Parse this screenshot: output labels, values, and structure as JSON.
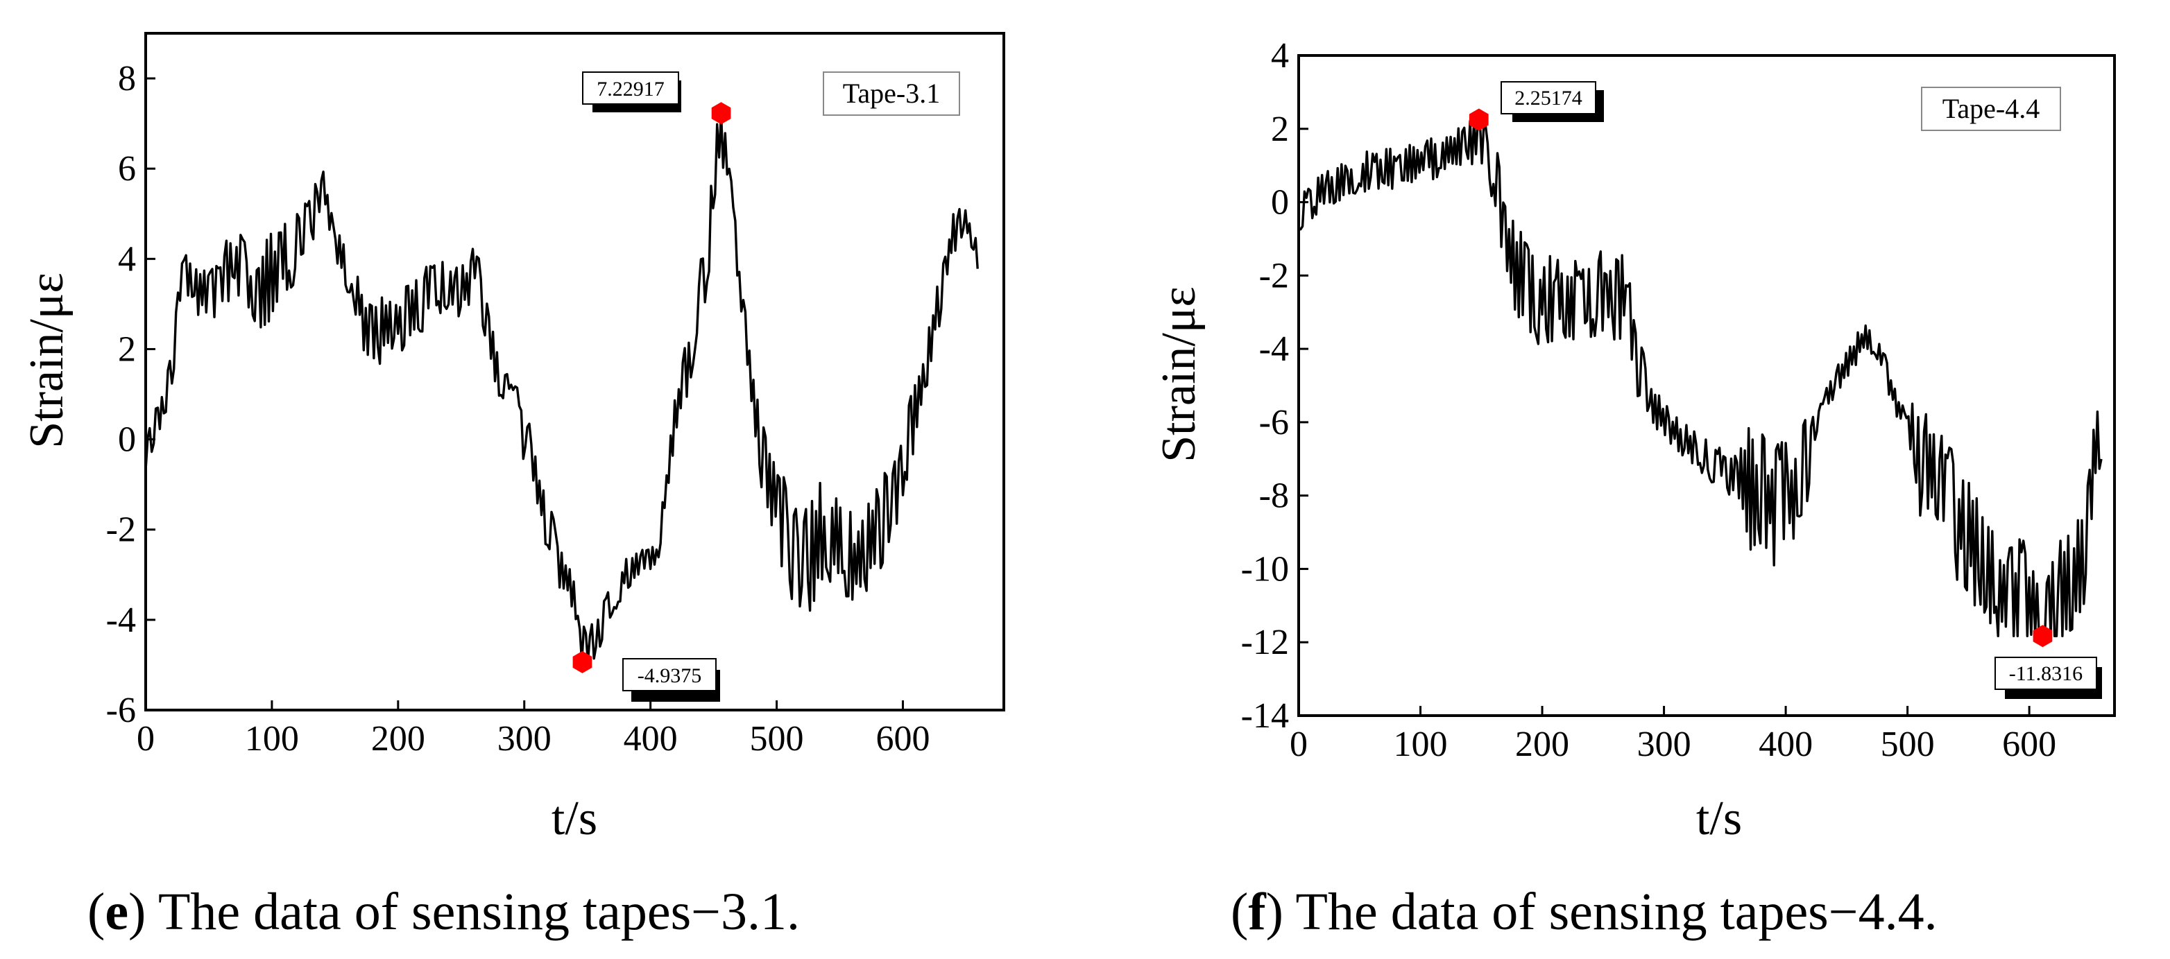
{
  "colors": {
    "line": "#000000",
    "marker": "#ff0000",
    "background": "#ffffff"
  },
  "chart_data": [
    {
      "type": "line",
      "panel_letter": "e",
      "caption_rest": ") The data of sensing tapes−3.1.",
      "legend": "Tape-3.1",
      "xlabel": "t/s",
      "ylabel": "Strain/με",
      "xlim": [
        0,
        680
      ],
      "ylim": [
        -6,
        9
      ],
      "xticks": [
        0,
        100,
        200,
        300,
        400,
        500,
        600
      ],
      "yticks": [
        -6,
        -4,
        -2,
        0,
        2,
        4,
        6,
        8
      ],
      "anchors": [
        [
          0,
          -0.3
        ],
        [
          10,
          0.5
        ],
        [
          20,
          1.4
        ],
        [
          28,
          3.6
        ],
        [
          40,
          3.4
        ],
        [
          55,
          3.2
        ],
        [
          70,
          4.0
        ],
        [
          85,
          3.2
        ],
        [
          100,
          3.6
        ],
        [
          115,
          4.1
        ],
        [
          130,
          4.9
        ],
        [
          142,
          5.5
        ],
        [
          150,
          4.3
        ],
        [
          165,
          3.6
        ],
        [
          175,
          2.5
        ],
        [
          190,
          2.4
        ],
        [
          205,
          2.7
        ],
        [
          220,
          3.1
        ],
        [
          235,
          3.4
        ],
        [
          250,
          3.2
        ],
        [
          262,
          3.9
        ],
        [
          272,
          2.2
        ],
        [
          285,
          1.0
        ],
        [
          300,
          0.2
        ],
        [
          315,
          -1.6
        ],
        [
          328,
          -2.8
        ],
        [
          340,
          -3.4
        ],
        [
          350,
          -4.7
        ],
        [
          365,
          -3.9
        ],
        [
          380,
          -3.0
        ],
        [
          395,
          -2.7
        ],
        [
          405,
          -2.6
        ],
        [
          420,
          0.5
        ],
        [
          435,
          2.4
        ],
        [
          445,
          3.9
        ],
        [
          453,
          6.5
        ],
        [
          460,
          6.5
        ],
        [
          470,
          3.6
        ],
        [
          480,
          1.2
        ],
        [
          490,
          -0.6
        ],
        [
          500,
          -1.2
        ],
        [
          510,
          -2.6
        ],
        [
          520,
          -2.7
        ],
        [
          535,
          -2.2
        ],
        [
          550,
          -2.4
        ],
        [
          565,
          -2.8
        ],
        [
          580,
          -2.0
        ],
        [
          595,
          -1.2
        ],
        [
          610,
          0.6
        ],
        [
          625,
          2.6
        ],
        [
          640,
          4.6
        ],
        [
          650,
          4.9
        ],
        [
          660,
          4.0
        ]
      ],
      "noise_amp": [
        [
          0,
          0.4
        ],
        [
          100,
          1.0
        ],
        [
          150,
          0.4
        ],
        [
          170,
          0.8
        ],
        [
          260,
          0.6
        ],
        [
          300,
          0.7
        ],
        [
          400,
          0.3
        ],
        [
          440,
          0.9
        ],
        [
          470,
          0.4
        ],
        [
          510,
          1.4
        ],
        [
          600,
          0.9
        ],
        [
          660,
          0.3
        ]
      ],
      "x_end": 660,
      "seed": 7,
      "max_point": {
        "x": 456,
        "y": 7.22917,
        "label": "7.22917"
      },
      "min_point": {
        "x": 346,
        "y": -4.9375,
        "label": "-4.9375"
      }
    },
    {
      "type": "line",
      "panel_letter": "f",
      "caption_rest": ") The data of sensing tapes−4.4.",
      "legend": "Tape-4.4",
      "xlabel": "t/s",
      "ylabel": "Strain/με",
      "xlim": [
        0,
        670
      ],
      "ylim": [
        -14,
        4
      ],
      "xticks": [
        0,
        100,
        200,
        300,
        400,
        500,
        600
      ],
      "yticks": [
        -14,
        -12,
        -10,
        -8,
        -6,
        -4,
        -2,
        0,
        2,
        4
      ],
      "anchors": [
        [
          0,
          -0.3
        ],
        [
          20,
          0.3
        ],
        [
          40,
          0.6
        ],
        [
          60,
          0.9
        ],
        [
          80,
          0.9
        ],
        [
          100,
          1.1
        ],
        [
          120,
          1.3
        ],
        [
          140,
          1.7
        ],
        [
          148,
          1.6
        ],
        [
          160,
          1.0
        ],
        [
          168,
          -0.8
        ],
        [
          175,
          -1.6
        ],
        [
          190,
          -2.5
        ],
        [
          210,
          -2.7
        ],
        [
          230,
          -2.6
        ],
        [
          250,
          -2.5
        ],
        [
          268,
          -2.6
        ],
        [
          280,
          -4.6
        ],
        [
          292,
          -5.6
        ],
        [
          310,
          -6.3
        ],
        [
          330,
          -6.9
        ],
        [
          350,
          -7.3
        ],
        [
          370,
          -7.8
        ],
        [
          390,
          -8.2
        ],
        [
          410,
          -7.9
        ],
        [
          425,
          -6.1
        ],
        [
          440,
          -4.9
        ],
        [
          455,
          -4.2
        ],
        [
          465,
          -3.6
        ],
        [
          475,
          -3.9
        ],
        [
          488,
          -5.2
        ],
        [
          500,
          -6.2
        ],
        [
          520,
          -7.4
        ],
        [
          540,
          -8.6
        ],
        [
          560,
          -9.6
        ],
        [
          580,
          -10.6
        ],
        [
          600,
          -11.0
        ],
        [
          615,
          -11.3
        ],
        [
          630,
          -10.6
        ],
        [
          645,
          -9.8
        ],
        [
          650,
          -8.2
        ],
        [
          655,
          -6.0
        ],
        [
          660,
          -7.7
        ]
      ],
      "noise_amp": [
        [
          0,
          0.5
        ],
        [
          140,
          0.6
        ],
        [
          165,
          1.3
        ],
        [
          270,
          1.3
        ],
        [
          290,
          0.5
        ],
        [
          360,
          0.6
        ],
        [
          370,
          1.8
        ],
        [
          415,
          1.6
        ],
        [
          425,
          0.4
        ],
        [
          500,
          0.4
        ],
        [
          510,
          1.8
        ],
        [
          650,
          1.6
        ],
        [
          660,
          0.6
        ]
      ],
      "x_end": 660,
      "seed": 13,
      "max_point": {
        "x": 148,
        "y": 2.25174,
        "label": "2.25174"
      },
      "min_point": {
        "x": 611,
        "y": -11.8316,
        "label": "-11.8316"
      }
    }
  ]
}
